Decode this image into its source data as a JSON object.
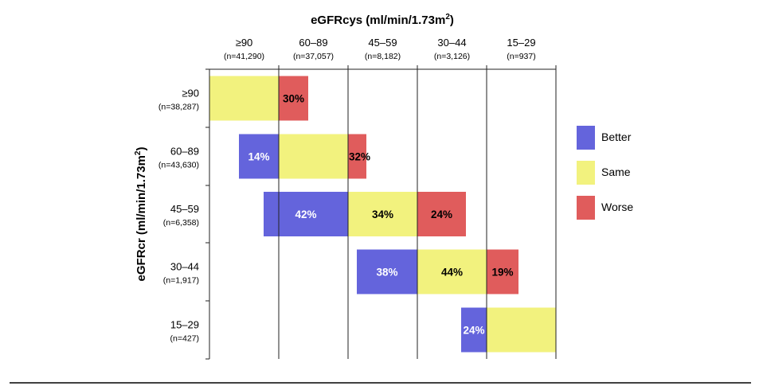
{
  "chart_data": {
    "type": "bar",
    "subtype": "stacked-horizontal-transition",
    "x_title": "eGFRcys (ml/min/1.73m",
    "x_title_sup": "2",
    "x_title_end": ")",
    "y_title": "eGFRcr (ml/min/1.73m",
    "y_title_sup": "2",
    "y_title_end": ")",
    "columns": [
      {
        "label": "≥90",
        "n": "(n=41,290)"
      },
      {
        "label": "60–89",
        "n": "(n=37,057)"
      },
      {
        "label": "45–59",
        "n": "(n=8,182)"
      },
      {
        "label": "30–44",
        "n": "(n=3,126)"
      },
      {
        "label": "15–29",
        "n": "(n=937)"
      }
    ],
    "rows": [
      {
        "label": "≥90",
        "n": "(n=38,287)",
        "better": null,
        "same": null,
        "worse": 30,
        "better_label": "",
        "same_label": "",
        "worse_label": "30%"
      },
      {
        "label": "60–89",
        "n": "(n=43,630)",
        "better": 14,
        "same": null,
        "worse": 32,
        "better_label": "14%",
        "same_label": "",
        "worse_label": "32%"
      },
      {
        "label": "45–59",
        "n": "(n=6,358)",
        "better": 42,
        "same": 34,
        "worse": 24,
        "better_label": "42%",
        "same_label": "34%",
        "worse_label": "24%"
      },
      {
        "label": "30–44",
        "n": "(n=1,917)",
        "better": 38,
        "same": 44,
        "worse": 19,
        "better_label": "38%",
        "same_label": "44%",
        "worse_label": "19%"
      },
      {
        "label": "15–29",
        "n": "(n=427)",
        "better": 24,
        "same": null,
        "worse": null,
        "better_label": "24%",
        "same_label": "",
        "worse_label": ""
      }
    ],
    "legend": {
      "placement": "right",
      "items": [
        {
          "name": "Better",
          "color": "#6464DC"
        },
        {
          "name": "Same",
          "color": "#F2F27E"
        },
        {
          "name": "Worse",
          "color": "#E05C5C"
        }
      ]
    },
    "grid": true
  }
}
